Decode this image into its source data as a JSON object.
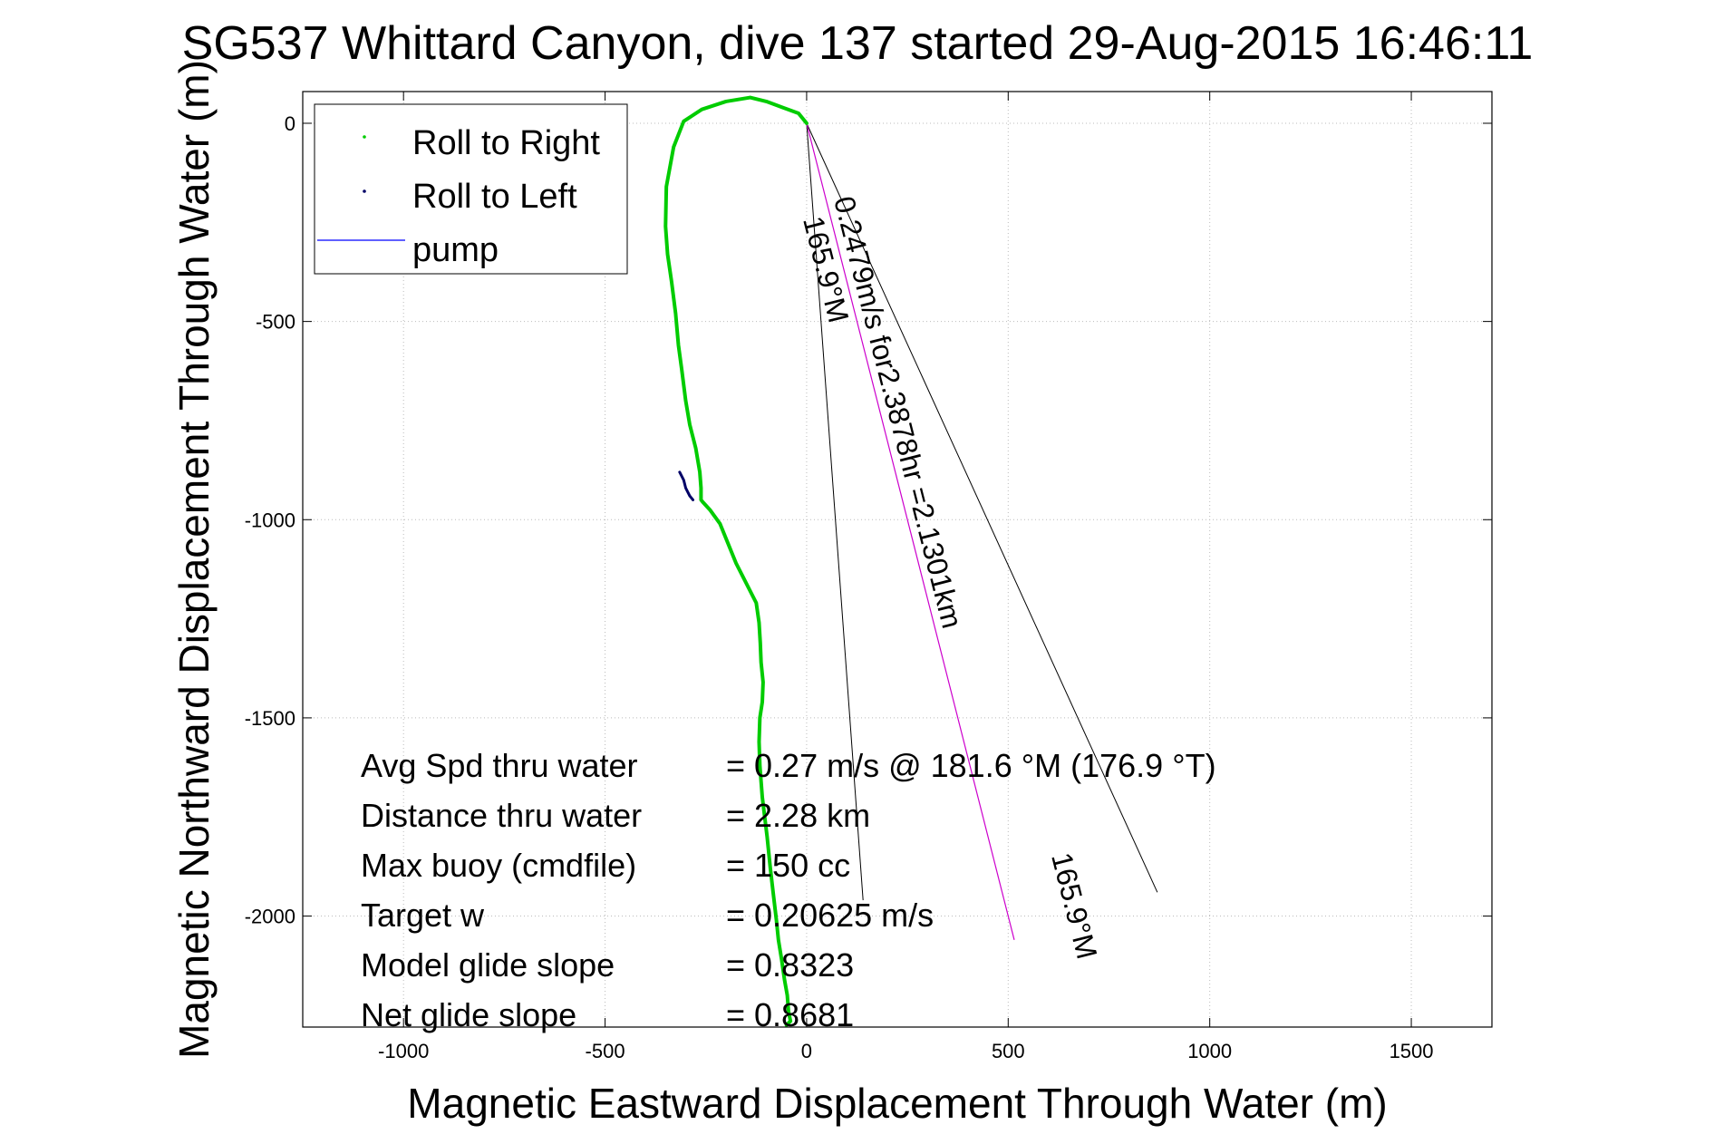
{
  "chart_data": {
    "type": "line",
    "title": "SG537 Whittard Canyon, dive 137 started 29-Aug-2015 16:46:11",
    "xlabel": "Magnetic Eastward Displacement Through Water (m)",
    "ylabel": "Magnetic Northward Displacement Through Water (m)",
    "xlim": [
      -1250,
      1700
    ],
    "ylim": [
      -2280,
      80
    ],
    "xticks": [
      -1000,
      -500,
      0,
      500,
      1000,
      1500
    ],
    "yticks": [
      0,
      -500,
      -1000,
      -1500,
      -2000
    ],
    "xtick_labels": [
      "-1000",
      "-500",
      "0",
      "500",
      "1000",
      "1500"
    ],
    "ytick_labels": [
      "0",
      "-500",
      "-1000",
      "-1500",
      "-2000"
    ],
    "grid": true,
    "legend_position": "top-left",
    "legend": [
      {
        "label": "Roll to Right",
        "color": "#00cc00",
        "marker": "point"
      },
      {
        "label": "Roll to Left",
        "color": "#000066",
        "marker": "point"
      },
      {
        "label": "pump",
        "color": "#0000ff",
        "marker": "line"
      }
    ],
    "series": [
      {
        "name": "Roll to Right",
        "color": "#00cc00",
        "x": [
          0,
          -20,
          -60,
          -100,
          -140,
          -200,
          -260,
          -305,
          -330,
          -348,
          -350,
          -345,
          -335,
          -325,
          -318,
          -310,
          -305,
          -300,
          -290,
          -275,
          -265,
          -262,
          -262,
          -258,
          -240,
          -215,
          -195,
          -175,
          -150,
          -125,
          -118,
          -115,
          -113,
          -108,
          -110,
          -116,
          -118,
          -116,
          -110,
          -98,
          -90,
          -82,
          -75,
          -70,
          -62,
          -55,
          -48,
          -45,
          -40,
          -50
        ],
        "y": [
          0,
          25,
          40,
          55,
          65,
          55,
          35,
          5,
          -60,
          -160,
          -260,
          -330,
          -400,
          -480,
          -560,
          -620,
          -660,
          -700,
          -760,
          -820,
          -880,
          -920,
          -950,
          -955,
          -975,
          -1010,
          -1060,
          -1110,
          -1160,
          -1210,
          -1260,
          -1310,
          -1360,
          -1410,
          -1460,
          -1500,
          -1560,
          -1620,
          -1700,
          -1800,
          -1880,
          -1950,
          -2010,
          -2060,
          -2110,
          -2160,
          -2200,
          -2240,
          -2265,
          -2275
        ]
      },
      {
        "name": "Roll to Left",
        "color": "#000066",
        "x": [
          -315,
          -305,
          -300,
          -290,
          -282
        ],
        "y": [
          -880,
          -900,
          -920,
          -940,
          -950
        ]
      }
    ],
    "reference_lines": {
      "heading_lines": [
        {
          "x": [
            0,
            140
          ],
          "y": [
            0,
            -1960
          ]
        },
        {
          "x": [
            0,
            870
          ],
          "y": [
            0,
            -1940
          ]
        }
      ],
      "current_vector": {
        "x": [
          0,
          515
        ],
        "y": [
          0,
          -2060
        ],
        "color": "#cc00cc"
      }
    },
    "annotations": {
      "vector_text": "0.2479m/s for2.3878hr =2.1301km",
      "heading_start": "165.9°M",
      "heading_end": "165.9°M"
    },
    "stats": [
      {
        "label": "Avg Spd thru water",
        "value": "=  0.27 m/s @ 181.6 °M (176.9 °T)"
      },
      {
        "label": "Distance thru water",
        "value": "=  2.28 km"
      },
      {
        "label": "Max buoy (cmdfile)",
        "value": "= 150 cc"
      },
      {
        "label": "Target w",
        "value": "= 0.20625 m/s"
      },
      {
        "label": "Model glide slope",
        "value": "= 0.8323"
      },
      {
        "label": "Net glide slope",
        "value": "= 0.8681"
      }
    ]
  }
}
